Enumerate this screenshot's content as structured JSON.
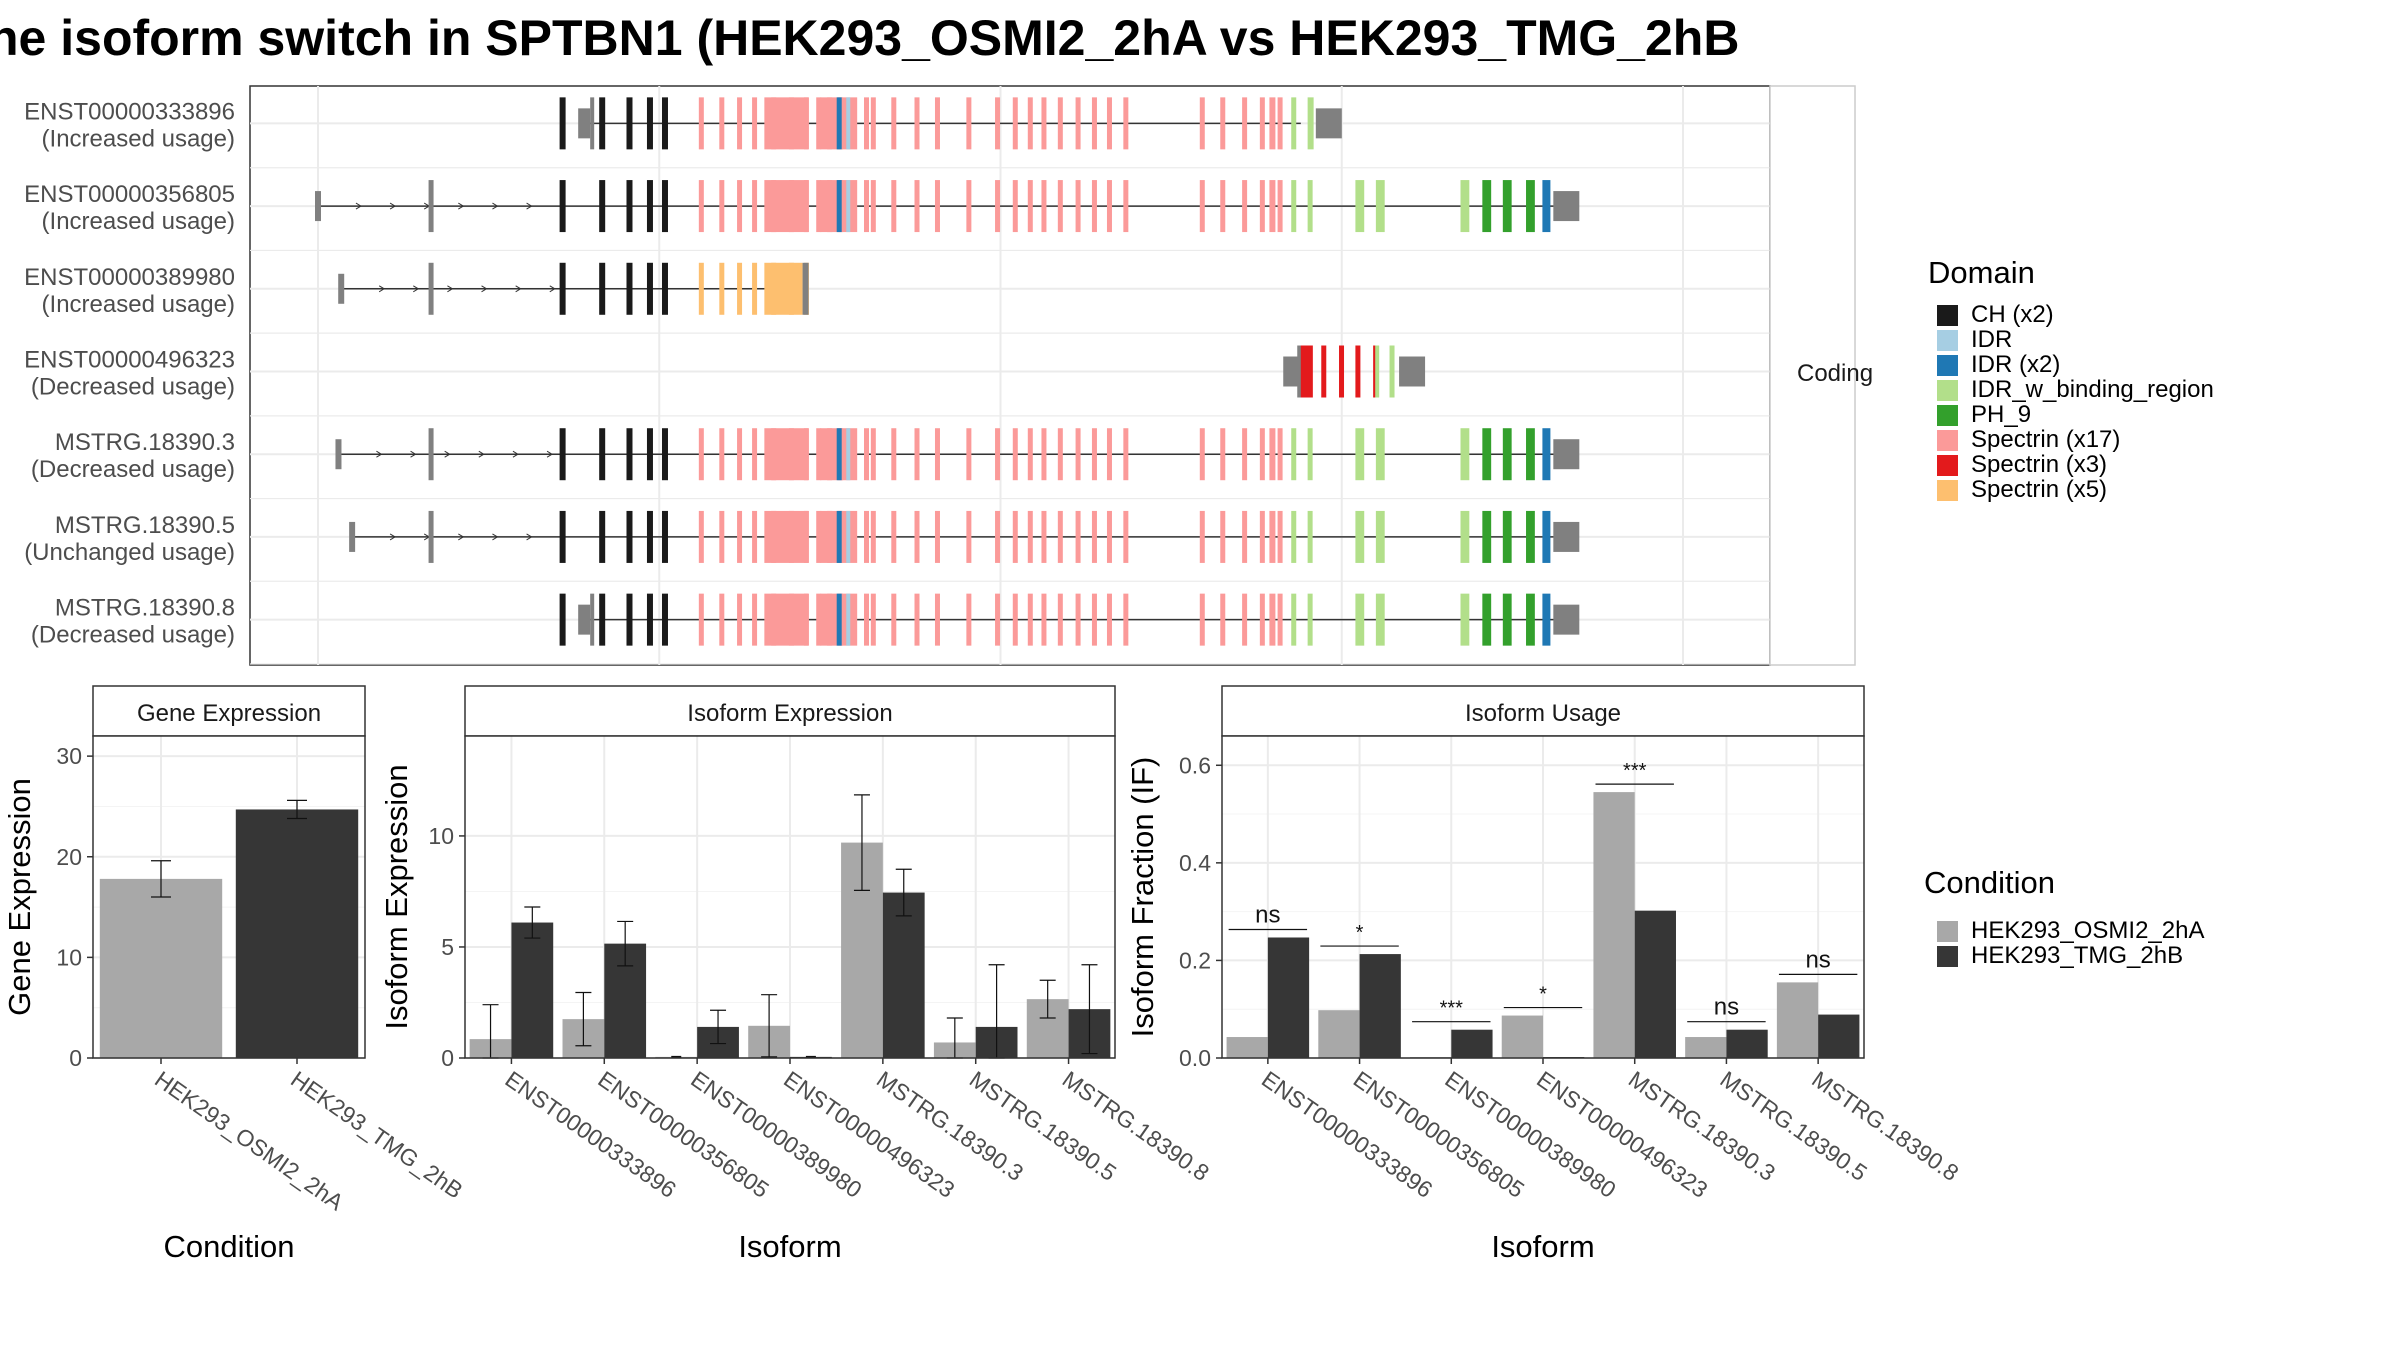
{
  "title": "he isoform switch in SPTBN1 (HEK293_OSMI2_2hA vs HEK293_TMG_2hB",
  "colors": {
    "cond1": "#a8a8a8",
    "cond2": "#363636",
    "intron": "#333333",
    "utr": "#808080",
    "coding_exon": "#1a1a1a"
  },
  "structure_panel": {
    "strip_label": "Coding",
    "transcripts": [
      {
        "id": "ENST00000333896",
        "usage": "(Increased usage)",
        "start_pos": 0.195,
        "exon_set": "full_main",
        "tail": "short"
      },
      {
        "id": "ENST00000356805",
        "usage": "(Increased usage)",
        "start_pos": 0.0,
        "exon_set": "full_main",
        "tail": "long"
      },
      {
        "id": "ENST00000389980",
        "usage": "(Increased usage)",
        "start_pos": 0.017,
        "exon_set": "truncated",
        "tail": "none"
      },
      {
        "id": "ENST00000496323",
        "usage": "(Decreased usage)",
        "start_pos": 0.713,
        "exon_set": "short_end",
        "tail": "short"
      },
      {
        "id": "MSTRG.18390.3",
        "usage": "(Decreased usage)",
        "start_pos": 0.015,
        "exon_set": "full_main",
        "tail": "long"
      },
      {
        "id": "MSTRG.18390.5",
        "usage": "(Unchanged usage)",
        "start_pos": 0.025,
        "exon_set": "full_main",
        "tail": "long"
      },
      {
        "id": "MSTRG.18390.8",
        "usage": "(Decreased usage)",
        "start_pos": 0.195,
        "exon_set": "full_main",
        "tail": "long"
      }
    ]
  },
  "legend_domain": {
    "title": "Domain",
    "items": [
      {
        "label": "CH (x2)",
        "color": "#1a1a1a"
      },
      {
        "label": "IDR",
        "color": "#a6cee3"
      },
      {
        "label": "IDR (x2)",
        "color": "#1f78b4"
      },
      {
        "label": "IDR_w_binding_region",
        "color": "#b2df8a"
      },
      {
        "label": "PH_9",
        "color": "#33a02c"
      },
      {
        "label": "Spectrin (x17)",
        "color": "#fb9a99"
      },
      {
        "label": "Spectrin (x3)",
        "color": "#e31a1c"
      },
      {
        "label": "Spectrin (x5)",
        "color": "#fdbf6f"
      }
    ]
  },
  "legend_condition": {
    "title": "Condition",
    "items": [
      {
        "label": "HEK293_OSMI2_2hA",
        "color": "#a8a8a8"
      },
      {
        "label": "HEK293_TMG_2hB",
        "color": "#363636"
      }
    ]
  },
  "chart_data": [
    {
      "type": "bar",
      "panel_title": "Gene Expression",
      "xlabel": "Condition",
      "ylabel": "Gene Expression",
      "ylim": [
        0,
        32
      ],
      "yticks": [
        0,
        10,
        20,
        30
      ],
      "categories": [
        "HEK293_OSMI2_2hA",
        "HEK293_TMG_2hB"
      ],
      "series": [
        {
          "values": [
            17.8,
            24.7
          ],
          "errors": [
            1.8,
            0.9
          ]
        }
      ],
      "grid": true
    },
    {
      "type": "bar",
      "panel_title": "Isoform Expression",
      "xlabel": "Isoform",
      "ylabel": "Isoform Expression",
      "ylim": [
        0,
        14.5
      ],
      "yticks": [
        0,
        5,
        10
      ],
      "categories": [
        "ENST00000333896",
        "ENST00000356805",
        "ENST00000389980",
        "ENST00000496323",
        "MSTRG.18390.3",
        "MSTRG.18390.5",
        "MSTRG.18390.8"
      ],
      "series": [
        {
          "name": "HEK293_OSMI2_2hA",
          "values": [
            0.85,
            1.75,
            0.05,
            1.45,
            9.7,
            0.7,
            2.65
          ],
          "errors": [
            1.55,
            1.2,
            0.0,
            1.4,
            2.15,
            1.1,
            0.85
          ]
        },
        {
          "name": "HEK293_TMG_2hB",
          "values": [
            6.1,
            5.15,
            1.4,
            0.05,
            7.45,
            1.4,
            2.2
          ],
          "errors": [
            0.7,
            1.0,
            0.75,
            0.0,
            1.05,
            2.8,
            2.0
          ]
        }
      ],
      "grid": true
    },
    {
      "type": "bar",
      "panel_title": "Isoform Usage",
      "xlabel": "Isoform",
      "ylabel": "Isoform Fraction (IF)",
      "ylim": [
        0,
        0.66
      ],
      "yticks": [
        0.0,
        0.2,
        0.4,
        0.6
      ],
      "categories": [
        "ENST00000333896",
        "ENST00000356805",
        "ENST00000389980",
        "ENST00000496323",
        "MSTRG.18390.3",
        "MSTRG.18390.5",
        "MSTRG.18390.8"
      ],
      "series": [
        {
          "name": "HEK293_OSMI2_2hA",
          "values": [
            0.043,
            0.098,
            0.002,
            0.087,
            0.545,
            0.043,
            0.155
          ]
        },
        {
          "name": "HEK293_TMG_2hB",
          "values": [
            0.247,
            0.213,
            0.058,
            0.002,
            0.302,
            0.058,
            0.089
          ]
        }
      ],
      "significance": [
        "ns",
        "*",
        "***",
        "*",
        "***",
        "ns",
        "ns"
      ],
      "grid": true
    }
  ]
}
